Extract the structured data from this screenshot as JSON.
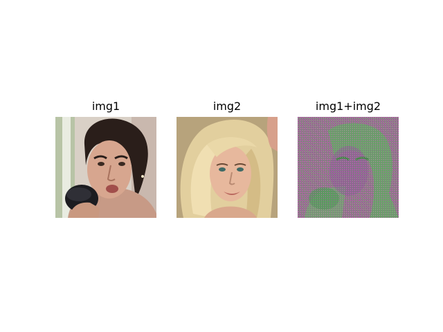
{
  "figure": {
    "panels": [
      {
        "title": "img1"
      },
      {
        "title": "img2"
      },
      {
        "title": "img1+img2"
      }
    ]
  }
}
